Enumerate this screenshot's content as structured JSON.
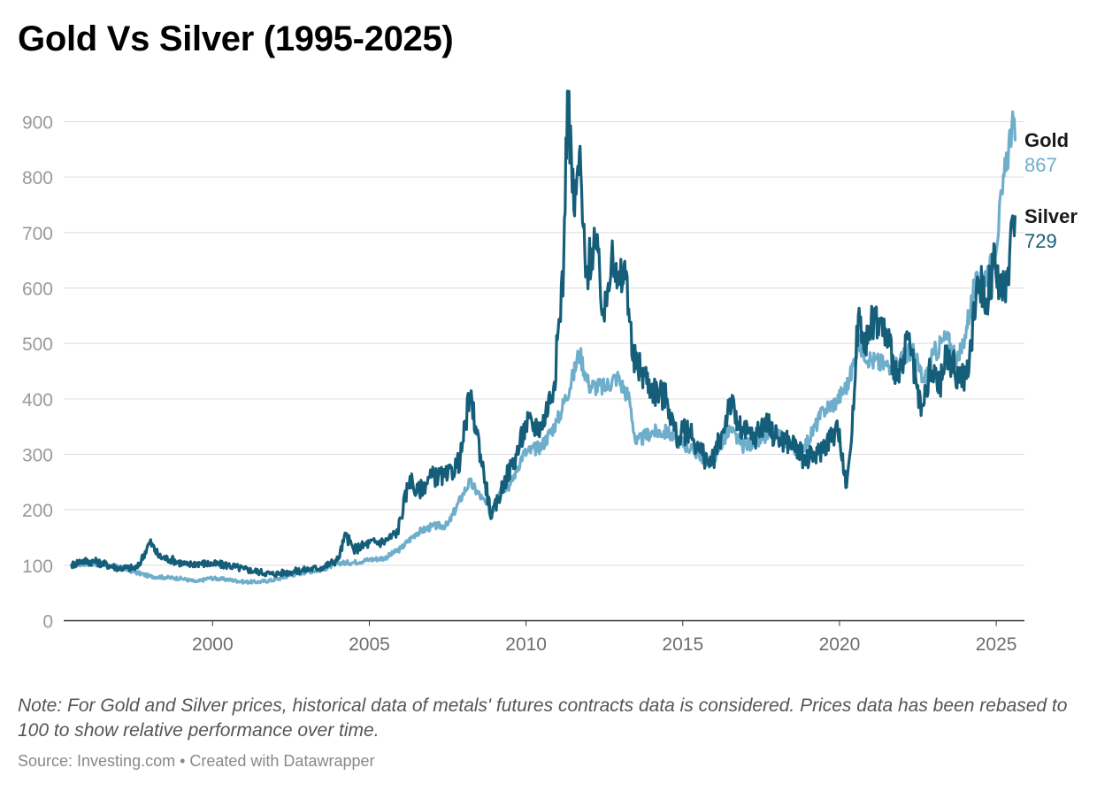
{
  "title": "Gold Vs Silver (1995-2025)",
  "note": "Note: For Gold and Silver prices, historical data of metals' futures contracts data is considered. Prices data has been rebased to 100 to show relative performance over time.",
  "source": "Source: Investing.com • Created with Datawrapper",
  "colors": {
    "gold": "#6eaecb",
    "silver": "#155e7a",
    "grid": "#dddddd",
    "axis": "#333333"
  },
  "chart_data": {
    "type": "line",
    "title": "Gold Vs Silver (1995-2025)",
    "xlabel": "",
    "ylabel": "",
    "xlim": [
      1995.25,
      2025.9
    ],
    "ylim": [
      0,
      900
    ],
    "yticks": [
      "0",
      "100",
      "200",
      "300",
      "400",
      "500",
      "600",
      "700",
      "800",
      "900"
    ],
    "xticks": [
      "2000",
      "2005",
      "2010",
      "2015",
      "2020",
      "2025"
    ],
    "grid": true,
    "legend": "right, end of lines",
    "series": [
      {
        "name": "Gold",
        "end_label": "867",
        "color": "#6eaecb",
        "points": [
          [
            1995.5,
            100
          ],
          [
            1996.0,
            103
          ],
          [
            1996.5,
            101
          ],
          [
            1997.0,
            97
          ],
          [
            1997.5,
            88
          ],
          [
            1998.0,
            80
          ],
          [
            1998.5,
            78
          ],
          [
            1999.0,
            76
          ],
          [
            1999.5,
            70
          ],
          [
            1999.9,
            77
          ],
          [
            2000.5,
            74
          ],
          [
            2001.0,
            70
          ],
          [
            2001.5,
            70
          ],
          [
            2002.0,
            74
          ],
          [
            2002.5,
            82
          ],
          [
            2003.0,
            88
          ],
          [
            2003.5,
            92
          ],
          [
            2004.0,
            104
          ],
          [
            2004.5,
            105
          ],
          [
            2005.0,
            110
          ],
          [
            2005.5,
            113
          ],
          [
            2006.0,
            130
          ],
          [
            2006.5,
            158
          ],
          [
            2007.0,
            170
          ],
          [
            2007.5,
            172
          ],
          [
            2008.0,
            230
          ],
          [
            2008.2,
            250
          ],
          [
            2008.6,
            220
          ],
          [
            2008.9,
            195
          ],
          [
            2009.2,
            240
          ],
          [
            2009.5,
            245
          ],
          [
            2009.9,
            300
          ],
          [
            2010.5,
            315
          ],
          [
            2011.0,
            360
          ],
          [
            2011.5,
            440
          ],
          [
            2011.7,
            485
          ],
          [
            2012.0,
            425
          ],
          [
            2012.5,
            420
          ],
          [
            2012.9,
            440
          ],
          [
            2013.3,
            400
          ],
          [
            2013.5,
            320
          ],
          [
            2014.0,
            340
          ],
          [
            2014.5,
            340
          ],
          [
            2015.0,
            320
          ],
          [
            2015.5,
            300
          ],
          [
            2015.9,
            285
          ],
          [
            2016.5,
            345
          ],
          [
            2016.9,
            315
          ],
          [
            2017.5,
            325
          ],
          [
            2018.0,
            340
          ],
          [
            2018.7,
            305
          ],
          [
            2019.0,
            325
          ],
          [
            2019.5,
            380
          ],
          [
            2019.9,
            395
          ],
          [
            2020.3,
            430
          ],
          [
            2020.6,
            500
          ],
          [
            2021.0,
            470
          ],
          [
            2021.5,
            460
          ],
          [
            2022.0,
            470
          ],
          [
            2022.3,
            490
          ],
          [
            2022.7,
            430
          ],
          [
            2023.0,
            480
          ],
          [
            2023.4,
            510
          ],
          [
            2023.8,
            470
          ],
          [
            2024.0,
            515
          ],
          [
            2024.3,
            600
          ],
          [
            2024.6,
            620
          ],
          [
            2024.9,
            645
          ],
          [
            2025.2,
            770
          ],
          [
            2025.4,
            860
          ],
          [
            2025.5,
            895
          ],
          [
            2025.6,
            867
          ]
        ]
      },
      {
        "name": "Silver",
        "end_label": "729",
        "color": "#155e7a",
        "points": [
          [
            1995.5,
            100
          ],
          [
            1995.8,
            108
          ],
          [
            1996.3,
            106
          ],
          [
            1997.0,
            95
          ],
          [
            1997.6,
            95
          ],
          [
            1998.0,
            142
          ],
          [
            1998.3,
            115
          ],
          [
            1998.7,
            110
          ],
          [
            1999.2,
            100
          ],
          [
            1999.5,
            104
          ],
          [
            2000.0,
            102
          ],
          [
            2000.5,
            100
          ],
          [
            2001.0,
            93
          ],
          [
            2001.5,
            88
          ],
          [
            2001.9,
            84
          ],
          [
            2002.5,
            88
          ],
          [
            2003.0,
            92
          ],
          [
            2003.5,
            96
          ],
          [
            2004.0,
            110
          ],
          [
            2004.25,
            155
          ],
          [
            2004.5,
            128
          ],
          [
            2005.0,
            140
          ],
          [
            2005.5,
            143
          ],
          [
            2005.9,
            160
          ],
          [
            2006.3,
            260
          ],
          [
            2006.5,
            230
          ],
          [
            2007.0,
            260
          ],
          [
            2007.5,
            260
          ],
          [
            2007.9,
            290
          ],
          [
            2008.2,
            405
          ],
          [
            2008.4,
            350
          ],
          [
            2008.7,
            250
          ],
          [
            2008.9,
            185
          ],
          [
            2009.3,
            250
          ],
          [
            2009.7,
            300
          ],
          [
            2010.0,
            355
          ],
          [
            2010.5,
            350
          ],
          [
            2010.9,
            430
          ],
          [
            2011.2,
            640
          ],
          [
            2011.32,
            955
          ],
          [
            2011.55,
            730
          ],
          [
            2011.7,
            845
          ],
          [
            2011.9,
            620
          ],
          [
            2012.2,
            690
          ],
          [
            2012.5,
            540
          ],
          [
            2012.75,
            685
          ],
          [
            2012.9,
            600
          ],
          [
            2013.2,
            630
          ],
          [
            2013.4,
            470
          ],
          [
            2013.7,
            450
          ],
          [
            2014.0,
            420
          ],
          [
            2014.5,
            400
          ],
          [
            2014.8,
            330
          ],
          [
            2015.2,
            345
          ],
          [
            2015.5,
            310
          ],
          [
            2015.9,
            280
          ],
          [
            2016.3,
            345
          ],
          [
            2016.5,
            400
          ],
          [
            2016.8,
            345
          ],
          [
            2017.3,
            330
          ],
          [
            2017.6,
            360
          ],
          [
            2018.0,
            330
          ],
          [
            2018.5,
            320
          ],
          [
            2018.9,
            290
          ],
          [
            2019.3,
            300
          ],
          [
            2019.7,
            330
          ],
          [
            2020.0,
            345
          ],
          [
            2020.2,
            240
          ],
          [
            2020.4,
            340
          ],
          [
            2020.6,
            550
          ],
          [
            2020.9,
            500
          ],
          [
            2021.1,
            550
          ],
          [
            2021.5,
            515
          ],
          [
            2021.9,
            430
          ],
          [
            2022.2,
            510
          ],
          [
            2022.6,
            370
          ],
          [
            2022.9,
            450
          ],
          [
            2023.2,
            420
          ],
          [
            2023.4,
            480
          ],
          [
            2023.8,
            440
          ],
          [
            2024.1,
            440
          ],
          [
            2024.4,
            620
          ],
          [
            2024.7,
            580
          ],
          [
            2024.9,
            640
          ],
          [
            2025.1,
            620
          ],
          [
            2025.3,
            575
          ],
          [
            2025.5,
            725
          ],
          [
            2025.6,
            729
          ]
        ]
      }
    ]
  }
}
